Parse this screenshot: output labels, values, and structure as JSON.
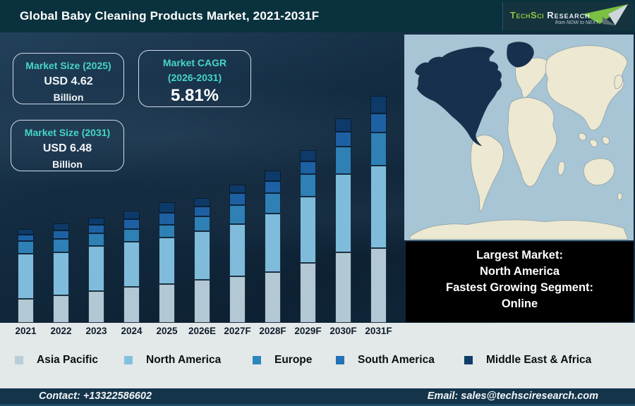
{
  "theme": {
    "header-bg": "#0a323e",
    "accent-teal": "#46d6c4",
    "map-ocean": "#a7c5d4",
    "map-land": "#ece8d1",
    "map-highlight": "#16304d",
    "map-border": "#8fa0a8"
  },
  "header": {
    "title": "Global Baby Cleaning Products Market, 2021-2031F",
    "logo": {
      "brand_primary": "TechSci ",
      "brand_secondary": "Research",
      "tagline": "from NOW to NEXT"
    }
  },
  "stats": [
    {
      "label": "Market Size (2025)",
      "value": "USD 4.62",
      "unit": "Billion"
    },
    {
      "label": "Market CAGR",
      "label2": "(2026-2031)",
      "value": "5.81%"
    },
    {
      "label": "Market Size (2031)",
      "value": "USD 6.48",
      "unit": "Billion"
    }
  ],
  "chart_data": {
    "type": "bar",
    "stacked": true,
    "title": "Global Baby Cleaning Products Market, 2021-2031F",
    "xlabel": "",
    "ylabel": "",
    "axes_shown": false,
    "grid": false,
    "legend_position": "bottom",
    "categories": [
      "2021",
      "2022",
      "2023",
      "2024",
      "2025",
      "2026E",
      "2027F",
      "2028F",
      "2029F",
      "2030F",
      "2031F"
    ],
    "series": [
      {
        "name": "Asia Pacific",
        "color": "#b2c8d4",
        "values": [
          34,
          39,
          45,
          51,
          55,
          61,
          66,
          72,
          85,
          100,
          106
        ]
      },
      {
        "name": "North America",
        "color": "#7fbcdc",
        "values": [
          64,
          61,
          64,
          64,
          66,
          69,
          74,
          83,
          94,
          111,
          117
        ]
      },
      {
        "name": "Europe",
        "color": "#2e80b5",
        "values": [
          18,
          19,
          18,
          18,
          18,
          21,
          27,
          29,
          32,
          39,
          47
        ]
      },
      {
        "name": "South America",
        "color": "#1e60a4",
        "values": [
          9,
          12,
          12,
          14,
          17,
          14,
          17,
          17,
          18,
          21,
          27
        ]
      },
      {
        "name": "Middle East & Africa",
        "color": "#0d3a68",
        "values": [
          8,
          10,
          10,
          12,
          15,
          12,
          12,
          15,
          16,
          19,
          25
        ]
      }
    ],
    "value_unit": "relative bar-segment height (px), totals not labeled on chart",
    "labeled_values": {
      "market_size_2025": "USD 4.62 Billion",
      "market_size_2031": "USD 6.48 Billion",
      "cagr_2026_2031": "5.81%"
    }
  },
  "legend": [
    {
      "label": "Asia Pacific",
      "color": "#b9cedb",
      "x": 21
    },
    {
      "label": "North America",
      "color": "#82c0e0",
      "x": 176
    },
    {
      "label": "Europe",
      "color": "#2e86c1",
      "x": 358
    },
    {
      "label": "South America",
      "color": "#2272b5",
      "x": 476
    },
    {
      "label": "Middle East & Africa",
      "color": "#0e3d68",
      "x": 658
    }
  ],
  "callout": {
    "lines": [
      "Largest Market:",
      "North America",
      "Fastest Growing Segment:",
      "Online"
    ]
  },
  "footer": {
    "contact": "Contact: +13322586602",
    "email": "Email: sales@techsciresearch.com"
  }
}
